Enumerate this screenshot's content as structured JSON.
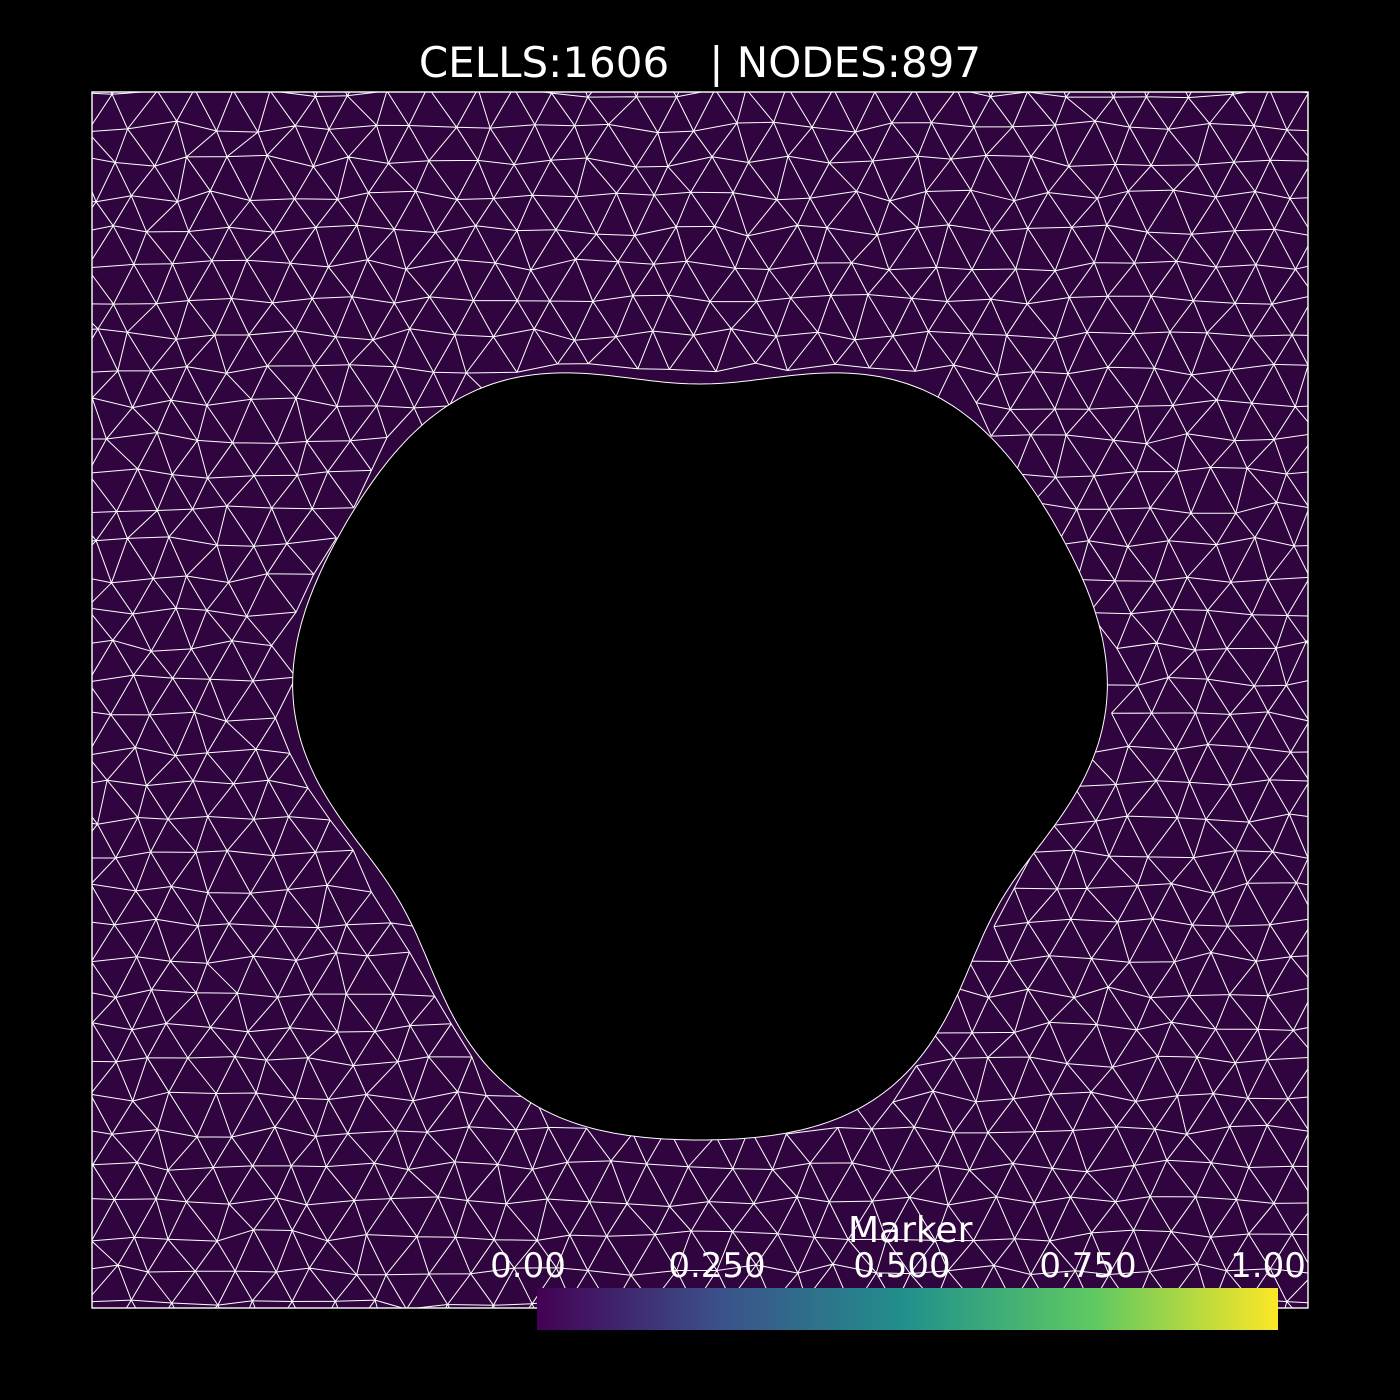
{
  "header": {
    "cells_label": "CELLS:1606",
    "separator": "|",
    "nodes_label": "NODES:897"
  },
  "mesh": {
    "cells": 1606,
    "nodes": 897,
    "fill_color": "#30053f",
    "edge_color": "#ffffff",
    "hole_color": "#000000"
  },
  "colorbar": {
    "title": "Marker",
    "colormap": "viridis",
    "range": [
      0.0,
      1.0
    ],
    "tick_labels": [
      "0.00",
      "0.250",
      "0.500",
      "0.750",
      "1.00"
    ],
    "stops": [
      "#440154",
      "#3b528b",
      "#21918c",
      "#5ec962",
      "#fde725"
    ]
  }
}
